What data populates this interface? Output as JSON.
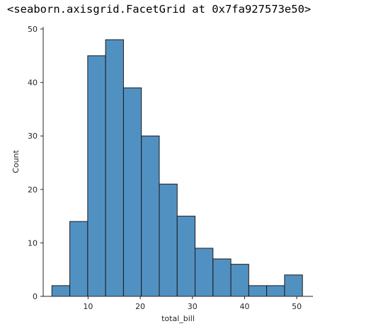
{
  "output_header": "<seaborn.axisgrid.FacetGrid at 0x7fa927573e50>",
  "chart_data": {
    "type": "bar",
    "subtype": "histogram",
    "xlabel": "total_bill",
    "ylabel": "Count",
    "xlim": [
      1.4,
      53.1
    ],
    "ylim": [
      0,
      50.4
    ],
    "x_ticks": [
      10,
      20,
      30,
      40,
      50
    ],
    "y_ticks": [
      0,
      10,
      20,
      30,
      40,
      50
    ],
    "bin_edges": [
      3.07,
      6.5,
      9.93,
      13.36,
      16.79,
      20.22,
      23.65,
      27.08,
      30.51,
      33.94,
      37.37,
      40.8,
      44.23,
      47.66,
      51.09
    ],
    "values": [
      2,
      14,
      45,
      48,
      39,
      30,
      21,
      15,
      9,
      7,
      6,
      2,
      2,
      4
    ],
    "bar_color": "#5191c2",
    "edge_color": "#1a1a1a",
    "grid": false,
    "spines": "left-bottom"
  }
}
